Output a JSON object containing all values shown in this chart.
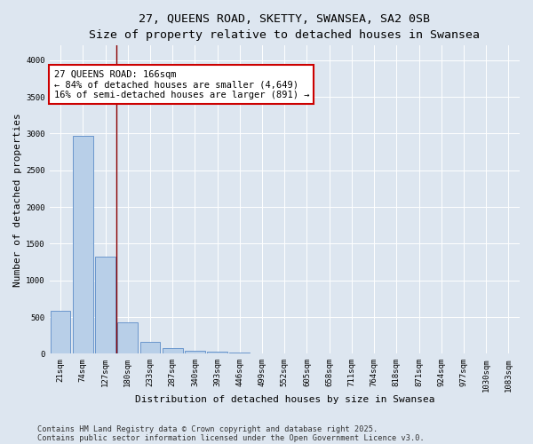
{
  "title_line1": "27, QUEENS ROAD, SKETTY, SWANSEA, SA2 0SB",
  "title_line2": "Size of property relative to detached houses in Swansea",
  "xlabel": "Distribution of detached houses by size in Swansea",
  "ylabel": "Number of detached properties",
  "bin_labels": [
    "21sqm",
    "74sqm",
    "127sqm",
    "180sqm",
    "233sqm",
    "287sqm",
    "340sqm",
    "393sqm",
    "446sqm",
    "499sqm",
    "552sqm",
    "605sqm",
    "658sqm",
    "711sqm",
    "764sqm",
    "818sqm",
    "871sqm",
    "924sqm",
    "977sqm",
    "1030sqm",
    "1083sqm"
  ],
  "bar_values": [
    590,
    2970,
    1320,
    430,
    165,
    80,
    40,
    25,
    15,
    5,
    0,
    0,
    0,
    0,
    0,
    0,
    0,
    0,
    0,
    0,
    0
  ],
  "bar_color": "#b8cfe8",
  "bar_edge_color": "#5b8cc8",
  "background_color": "#dde6f0",
  "grid_color": "#ffffff",
  "annotation_text": "27 QUEENS ROAD: 166sqm\n← 84% of detached houses are smaller (4,649)\n16% of semi-detached houses are larger (891) →",
  "annotation_box_color": "#ffffff",
  "annotation_box_edge": "#cc0000",
  "ylim": [
    0,
    4200
  ],
  "yticks": [
    0,
    500,
    1000,
    1500,
    2000,
    2500,
    3000,
    3500,
    4000
  ],
  "footer_line1": "Contains HM Land Registry data © Crown copyright and database right 2025.",
  "footer_line2": "Contains public sector information licensed under the Open Government Licence v3.0.",
  "title_fontsize": 9.5,
  "subtitle_fontsize": 8.5,
  "axis_label_fontsize": 8,
  "tick_fontsize": 6.5,
  "annotation_fontsize": 7.5,
  "footer_fontsize": 6.2
}
